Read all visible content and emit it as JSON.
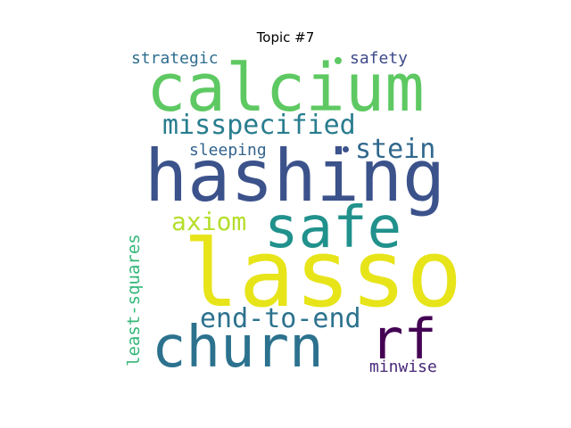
{
  "title": "Topic #7",
  "words": [
    {
      "text": "calcium",
      "color": "#5ec962"
    },
    {
      "text": "hashing",
      "color": "#3b528b"
    },
    {
      "text": "lasso",
      "color": "#e7e419"
    },
    {
      "text": "safe",
      "color": "#21918c"
    },
    {
      "text": "churn",
      "color": "#2c728e"
    },
    {
      "text": "rf",
      "color": "#440154"
    },
    {
      "text": "misspecified",
      "color": "#287d8e"
    },
    {
      "text": "end-to-end",
      "color": "#2c728e"
    },
    {
      "text": "stein",
      "color": "#31688e"
    },
    {
      "text": "axiom",
      "color": "#b5de2b"
    },
    {
      "text": "least-squares",
      "color": "#35b779"
    },
    {
      "text": "strategic",
      "color": "#2e6e8e"
    },
    {
      "text": "safety",
      "color": "#3e4a89"
    },
    {
      "text": "sleeping",
      "color": "#33638d"
    },
    {
      "text": "minwise",
      "color": "#482878"
    }
  ]
}
